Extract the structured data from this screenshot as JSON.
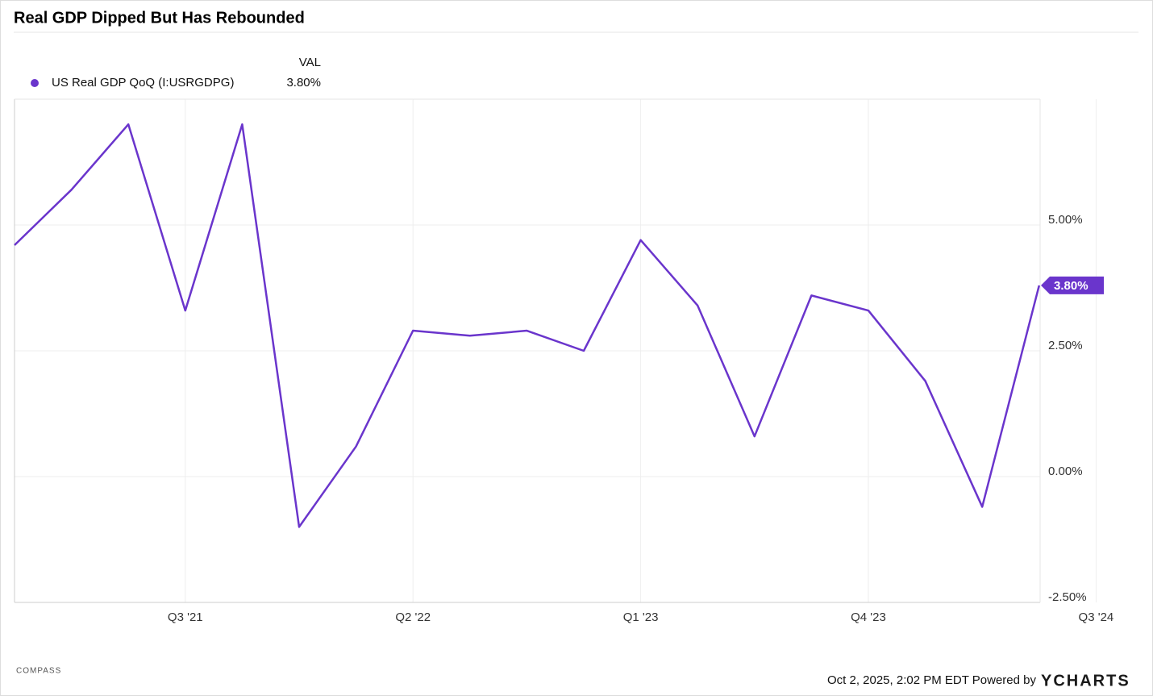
{
  "chart_data": {
    "type": "line",
    "title": "Real GDP Dipped But Has Rebounded",
    "legend_header": "VAL",
    "categories": [
      null,
      null,
      null,
      "Q3 '21",
      null,
      null,
      null,
      "Q2 '22",
      null,
      null,
      null,
      "Q1 '23",
      null,
      null,
      null,
      "Q4 '23",
      null,
      null,
      null,
      "Q3 '24",
      null,
      null,
      null
    ],
    "series": [
      {
        "name": "US Real GDP QoQ (I:USRGDPG)",
        "color": "#6a35cc",
        "values": [
          4.6,
          5.7,
          7.0,
          3.3,
          7.0,
          -1.0,
          0.6,
          2.9,
          2.8,
          2.9,
          2.5,
          4.7,
          3.4,
          0.8,
          3.6,
          3.3,
          1.9,
          -0.6,
          3.8,
          null,
          null,
          null,
          null
        ],
        "value_labels": [
          null,
          null,
          null,
          null,
          null,
          null,
          null,
          null,
          null,
          null,
          null,
          null,
          null,
          null,
          null,
          null,
          null,
          null,
          "3.80%",
          null,
          null,
          null,
          null
        ]
      }
    ],
    "ylim": [
      -2.5,
      7.5
    ],
    "yticks": [
      {
        "value": -2.5,
        "label": "-2.50%"
      },
      {
        "value": 0,
        "label": "0.00%"
      },
      {
        "value": 2.5,
        "label": "2.50%"
      },
      {
        "value": 5,
        "label": "5.00%"
      }
    ],
    "grid": true,
    "footer": "Oct 2, 2025, 2:02 PM EDT Powered by",
    "brand": "YCHARTS",
    "watermark": "COMPASS"
  }
}
